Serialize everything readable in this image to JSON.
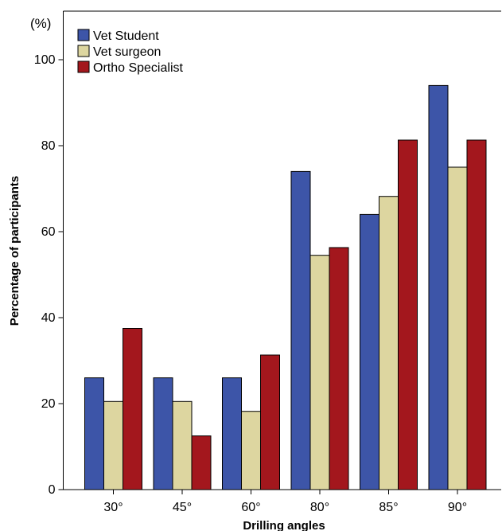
{
  "chart_data": {
    "type": "bar",
    "unit_label": "(%)",
    "xlabel": "Drilling angles",
    "ylabel": "Percentage of participants",
    "categories": [
      "30°",
      "45°",
      "60°",
      "80°",
      "85°",
      "90°"
    ],
    "ylim": [
      0,
      100
    ],
    "yticks": [
      "0",
      "20",
      "40",
      "60",
      "80",
      "100"
    ],
    "grid": false,
    "legend_position": "top-left",
    "series": [
      {
        "name": "Vet Student",
        "color": "#3d55a8",
        "values": [
          26,
          26,
          26,
          74,
          64,
          94
        ]
      },
      {
        "name": "Vet surgeon",
        "color": "#ddd6a0",
        "values": [
          20.5,
          20.5,
          18.2,
          54.5,
          68.2,
          75
        ]
      },
      {
        "name": "Ortho Specialist",
        "color": "#a3171d",
        "values": [
          37.5,
          12.5,
          31.3,
          56.3,
          81.3,
          81.3
        ]
      }
    ]
  }
}
